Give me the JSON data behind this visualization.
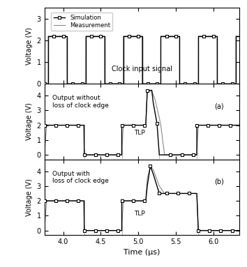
{
  "xlim": [
    3.75,
    6.35
  ],
  "clock_ylim": [
    0,
    3.5
  ],
  "output_ylim": [
    -0.3,
    4.8
  ],
  "clock_yticks": [
    0,
    1,
    2,
    3
  ],
  "output_yticks": [
    0,
    1,
    2,
    3,
    4
  ],
  "xlabel": "Time (μs)",
  "ylabel": "Voltage (V)",
  "legend_sim": "Simulation",
  "legend_meas": "Measurement",
  "clock_label": "Clock input signal",
  "panel_a_label": "Output without\nloss of clock edge",
  "panel_b_label": "Output with\nloss of clock edge",
  "tlp_label_a": "TLP",
  "tlp_label_b": "TLP",
  "panel_a_tag": "(a)",
  "panel_b_tag": "(b)",
  "sim_color": "#000000",
  "meas_color": "#888888",
  "spike_color": "#555555",
  "clock_period": 0.5,
  "clock_high": 2.2,
  "clock_low": 0.0,
  "tlp_time": 5.1,
  "tlp_peak": 4.35,
  "tlp_duration": 0.25
}
